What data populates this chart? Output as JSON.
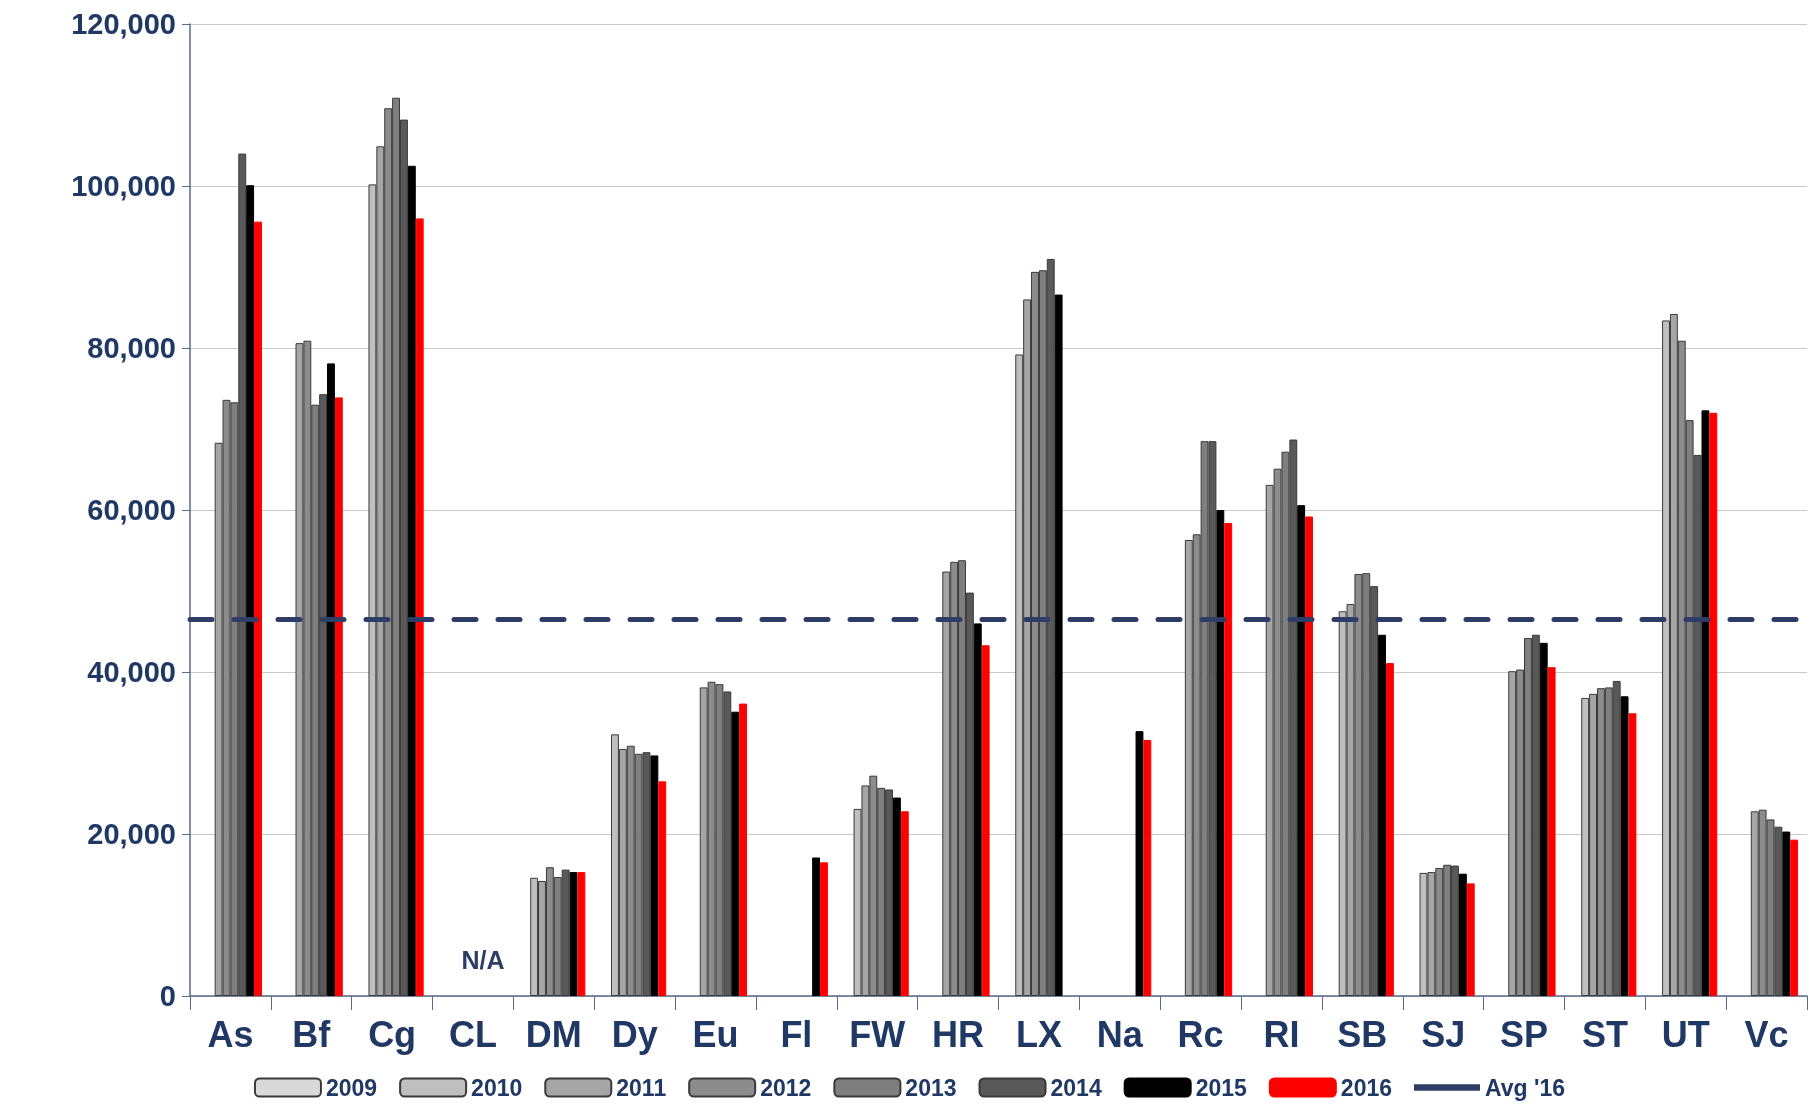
{
  "chart_data": {
    "type": "bar",
    "categories": [
      "As",
      "Bf",
      "Cg",
      "CL",
      "DM",
      "Dy",
      "Eu",
      "Fl",
      "FW",
      "HR",
      "LX",
      "Na",
      "Rc",
      "RI",
      "SB",
      "SJ",
      "SP",
      "ST",
      "UT",
      "Vc"
    ],
    "series": [
      {
        "name": "2009",
        "color": "#d9d9d9",
        "values": [
          null,
          null,
          null,
          null,
          null,
          null,
          null,
          null,
          null,
          null,
          null,
          null,
          null,
          null,
          null,
          null,
          null,
          null,
          null,
          null
        ]
      },
      {
        "name": "2010",
        "color": "#bfbfbf",
        "values": [
          null,
          null,
          100200,
          null,
          14600,
          32300,
          null,
          null,
          23100,
          null,
          79200,
          null,
          null,
          null,
          47500,
          15200,
          null,
          36800,
          83400,
          null
        ]
      },
      {
        "name": "2011",
        "color": "#a6a6a6",
        "values": [
          68300,
          80600,
          104900,
          null,
          14200,
          30500,
          38100,
          null,
          26000,
          52400,
          86000,
          null,
          56300,
          63100,
          48400,
          15300,
          40100,
          37300,
          84200,
          22800
        ]
      },
      {
        "name": "2012",
        "color": "#8c8c8c",
        "values": [
          73600,
          80900,
          109600,
          null,
          15900,
          30900,
          38800,
          null,
          27200,
          53600,
          89400,
          null,
          57000,
          65100,
          52100,
          15800,
          40300,
          38000,
          80900,
          23000
        ]
      },
      {
        "name": "2013",
        "color": "#7f7f7f",
        "values": [
          73300,
          73000,
          110900,
          null,
          14700,
          29900,
          38500,
          null,
          25700,
          53800,
          89600,
          null,
          68500,
          67200,
          52200,
          16200,
          44200,
          38100,
          71100,
          21800
        ]
      },
      {
        "name": "2014",
        "color": "#595959",
        "values": [
          104000,
          74300,
          108200,
          null,
          15600,
          30100,
          37600,
          null,
          25500,
          49800,
          91000,
          null,
          68500,
          68700,
          50600,
          16100,
          44600,
          38900,
          66800,
          20900
        ]
      },
      {
        "name": "2015",
        "color": "#000000",
        "values": [
          100100,
          78100,
          102500,
          null,
          15300,
          29700,
          35100,
          17100,
          24500,
          46000,
          86600,
          32700,
          60000,
          60600,
          44600,
          15100,
          43600,
          37000,
          72300,
          20300
        ]
      },
      {
        "name": "2016",
        "color": "#ff0000",
        "values": [
          95600,
          73900,
          96000,
          null,
          15300,
          26500,
          36100,
          16500,
          22800,
          43300,
          null,
          31600,
          58400,
          59200,
          41100,
          13900,
          40600,
          34900,
          72000,
          19300
        ]
      }
    ],
    "ylim": [
      0,
      120000
    ],
    "yticks": [
      {
        "value": 0,
        "label": "0"
      },
      {
        "value": 20000,
        "label": "20,000"
      },
      {
        "value": 40000,
        "label": "40,000"
      },
      {
        "value": 60000,
        "label": "60,000"
      },
      {
        "value": 80000,
        "label": "80,000"
      },
      {
        "value": 100000,
        "label": "100,000"
      },
      {
        "value": 120000,
        "label": "120,000"
      }
    ],
    "grid": "y",
    "legend": "bottom",
    "ref_lines": [
      {
        "axis": "y",
        "value": 46500,
        "label": "Avg '16",
        "color": "#2e3d66",
        "line_style": "dashed"
      }
    ],
    "annotations": [
      "N/A"
    ]
  }
}
